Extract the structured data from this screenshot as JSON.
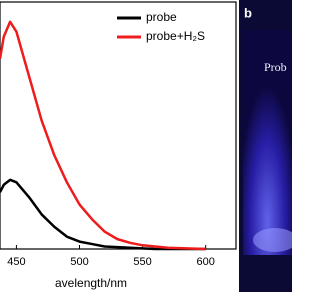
{
  "chart_data": {
    "type": "line",
    "x_label": "avelength/nm",
    "xlim": [
      437,
      624
    ],
    "xticks": [
      450,
      500,
      550,
      600
    ],
    "ylim": [
      0,
      100
    ],
    "legend": "top-right",
    "series": [
      {
        "name": "probe",
        "color": "#000000",
        "x": [
          437,
          440,
          445,
          450,
          460,
          470,
          480,
          490,
          500,
          510,
          520,
          540,
          560,
          600
        ],
        "values": [
          23,
          26,
          28,
          27,
          21,
          14,
          9,
          5,
          3,
          2,
          1,
          0.5,
          0,
          0
        ]
      },
      {
        "name": "probe+H₂S",
        "color": "#ee1c1c",
        "x": [
          437,
          440,
          445,
          450,
          460,
          470,
          480,
          490,
          500,
          510,
          520,
          530,
          540,
          550,
          570,
          600
        ],
        "values": [
          77,
          86,
          92,
          88,
          70,
          52,
          38,
          27,
          18,
          12,
          7,
          4,
          2.5,
          1.5,
          0.5,
          0
        ]
      }
    ]
  },
  "photo": {
    "panel_label": "b",
    "caption": "Prob"
  }
}
